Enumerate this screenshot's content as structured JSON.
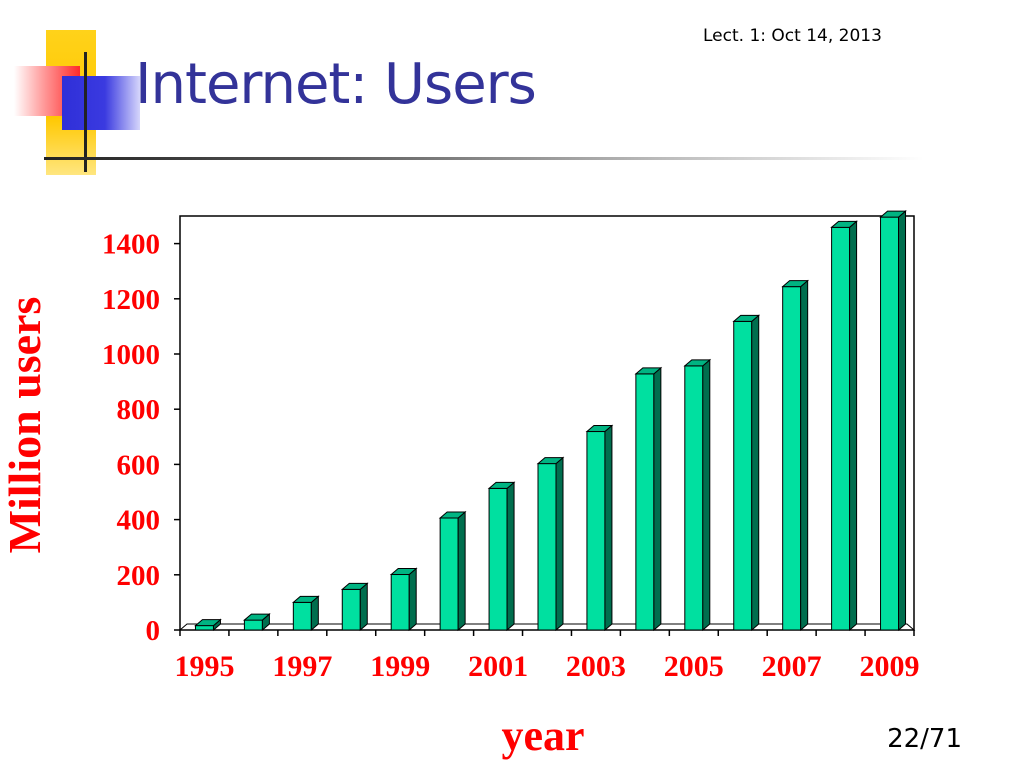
{
  "slide": {
    "title": "Internet: Users",
    "lecture_date": "Lect. 1: Oct 14, 2013",
    "page_number": "22/71"
  },
  "colors": {
    "title": "#333399",
    "axis_text": "#ff0000",
    "bar_front": "#00e0a0",
    "bar_side": "#006e4e",
    "bar_top": "#00b482"
  },
  "chart_data": {
    "type": "bar",
    "title": "",
    "xlabel": "year",
    "ylabel": "Million users",
    "ylim": [
      0,
      1500
    ],
    "yticks": [
      0,
      200,
      400,
      600,
      800,
      1000,
      1200,
      1400
    ],
    "x_tick_labels": [
      "1995",
      "1997",
      "1999",
      "2001",
      "2003",
      "2005",
      "2007",
      "2009"
    ],
    "categories": [
      "1995",
      "1996",
      "1997",
      "1998",
      "1999",
      "2000",
      "2001",
      "2002",
      "2003",
      "2004",
      "2005",
      "2006",
      "2007",
      "2008",
      "2009"
    ],
    "values": [
      16,
      36,
      100,
      147,
      201,
      406,
      513,
      603,
      719,
      928,
      957,
      1118,
      1244,
      1459,
      1496
    ],
    "grid": false,
    "legend": "none",
    "style": "3d-bar"
  }
}
